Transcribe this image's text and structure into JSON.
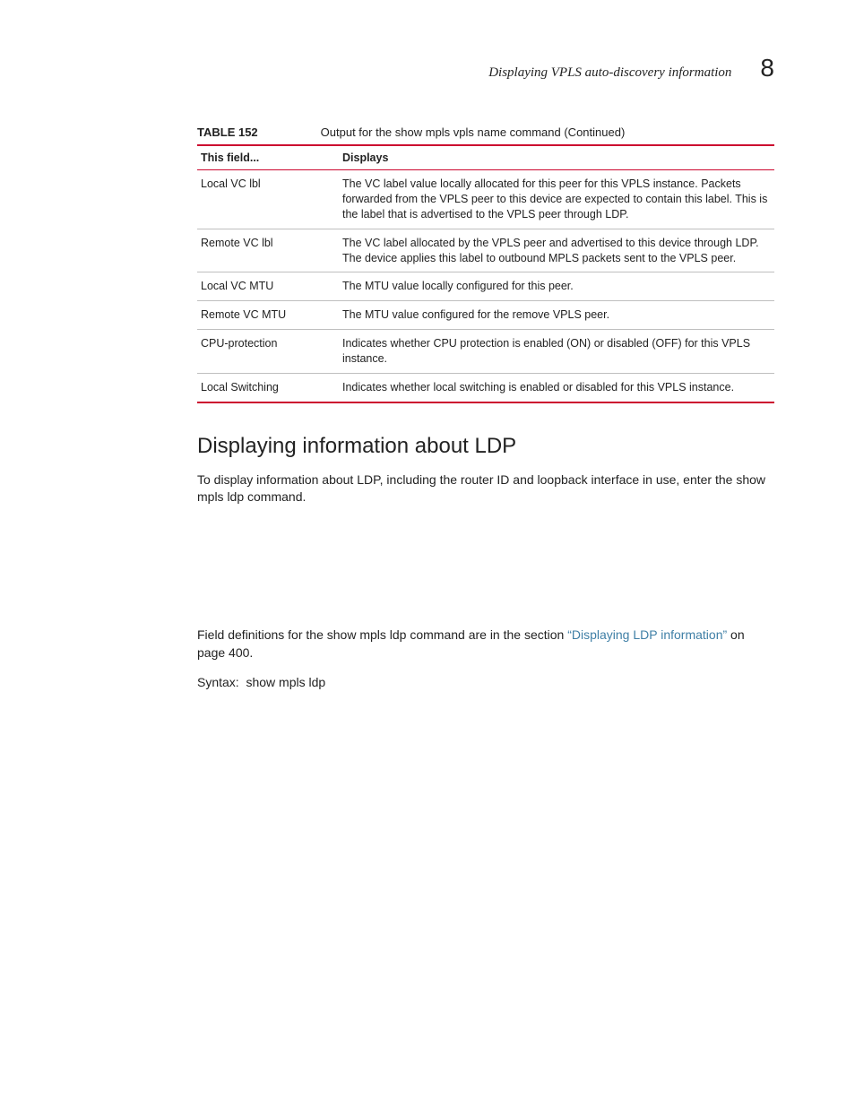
{
  "header": {
    "title": "Displaying VPLS auto-discovery information",
    "chapter": "8"
  },
  "table": {
    "label": "TABLE 152",
    "caption": "Output for the show mpls vpls name command (Continued)",
    "columns": [
      "This field...",
      "Displays"
    ],
    "rows": [
      {
        "field": "Local VC lbl",
        "displays": "The VC label value locally allocated for this peer for this VPLS instance. Packets forwarded from the VPLS peer to this device are expected to contain this label. This is the label that is advertised to the VPLS peer through LDP."
      },
      {
        "field": "Remote VC lbl",
        "displays": "The VC label allocated by the VPLS peer and advertised to this device through LDP. The device applies this label to outbound MPLS packets sent to the VPLS peer."
      },
      {
        "field": "Local VC MTU",
        "displays": "The MTU value locally configured for this peer."
      },
      {
        "field": "Remote VC MTU",
        "displays": "The MTU value configured for the remove VPLS peer."
      },
      {
        "field": "CPU-protection",
        "displays": "Indicates whether CPU protection is enabled (ON) or disabled (OFF) for this VPLS instance."
      },
      {
        "field": "Local Switching",
        "displays": "Indicates whether local switching is enabled or disabled for this VPLS instance."
      }
    ]
  },
  "section": {
    "heading": "Displaying information about LDP",
    "intro": "To display information about LDP, including the router ID and loopback interface in use, enter the show mpls ldp command.",
    "defs_pre": "Field definitions for the show mpls ldp command are in the section ",
    "defs_link": "“Displaying LDP information”",
    "defs_post": " on page 400.",
    "syntax": "Syntax:  show mpls ldp"
  },
  "colors": {
    "rule": "#cc092f",
    "link": "#3f7fa6",
    "text": "#222222",
    "border": "#bfbfbf"
  }
}
